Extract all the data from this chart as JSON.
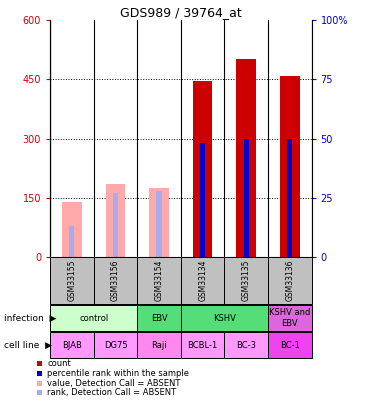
{
  "title": "GDS989 / 39764_at",
  "samples": [
    "GSM33155",
    "GSM33156",
    "GSM33154",
    "GSM33134",
    "GSM33135",
    "GSM33136"
  ],
  "count_values": [
    null,
    null,
    null,
    447,
    503,
    460
  ],
  "count_absent": [
    140,
    185,
    175,
    null,
    null,
    null
  ],
  "rank_values_pct": [
    null,
    null,
    null,
    48,
    50,
    50
  ],
  "rank_absent_pct": [
    13,
    27,
    28,
    null,
    null,
    null
  ],
  "left_ylim": [
    0,
    600
  ],
  "right_ylim": [
    0,
    100
  ],
  "left_yticks": [
    0,
    150,
    300,
    450,
    600
  ],
  "right_yticks": [
    0,
    25,
    50,
    75,
    100
  ],
  "left_yticklabels": [
    "0",
    "150",
    "300",
    "450",
    "600"
  ],
  "right_yticklabels": [
    "0",
    "25",
    "50",
    "75",
    "100%"
  ],
  "sample_bg_color": "#c0c0c0",
  "count_color": "#cc0000",
  "count_absent_color": "#ffaaaa",
  "rank_color": "#0000cc",
  "rank_absent_color": "#aaaaee",
  "infection_groups": [
    {
      "label": "control",
      "start": 0,
      "end": 2,
      "color": "#ccffcc"
    },
    {
      "label": "EBV",
      "start": 2,
      "end": 3,
      "color": "#55dd77"
    },
    {
      "label": "KSHV",
      "start": 3,
      "end": 5,
      "color": "#55dd77"
    },
    {
      "label": "KSHV and\nEBV",
      "start": 5,
      "end": 6,
      "color": "#dd66dd"
    }
  ],
  "cell_lines": [
    "BJAB",
    "DG75",
    "Raji",
    "BCBL-1",
    "BC-3",
    "BC-1"
  ],
  "cell_line_colors": [
    "#ff99ff",
    "#ff99ff",
    "#ff88ee",
    "#ff99ff",
    "#ff99ff",
    "#ee44ee"
  ],
  "legend_items": [
    {
      "color": "#cc0000",
      "label": "count"
    },
    {
      "color": "#0000cc",
      "label": "percentile rank within the sample"
    },
    {
      "color": "#ffaaaa",
      "label": "value, Detection Call = ABSENT"
    },
    {
      "color": "#aaaaee",
      "label": "rank, Detection Call = ABSENT"
    }
  ]
}
